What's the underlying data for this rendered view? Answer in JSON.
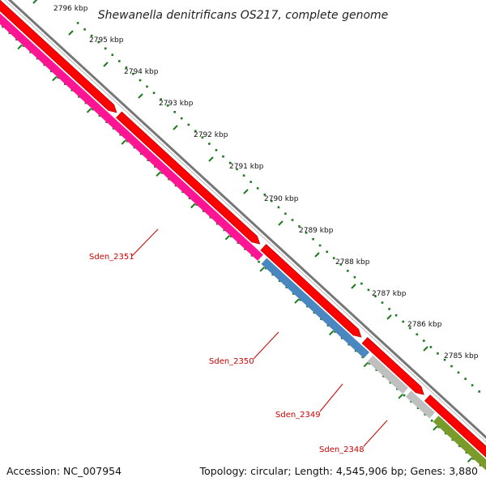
{
  "title": "Shewanella denitrificans OS217, complete genome",
  "ticks": [
    "2796 kbp",
    "2795 kbp",
    "2794 kbp",
    "2793 kbp",
    "2792 kbp",
    "2791 kbp",
    "2790 kbp",
    "2789 kbp",
    "2788 kbp",
    "2787 kbp",
    "2786 kbp",
    "2785 kbp"
  ],
  "genes": [
    "Sden_2351",
    "Sden_2350",
    "Sden_2349",
    "Sden_2348"
  ],
  "footer": {
    "accession": "Accession: NC_007954",
    "topology": "Topology: circular; Length: 4,545,906 bp; Genes: 3,880"
  },
  "colors": {
    "backbone": "#777777",
    "forward_cds": "#ff0000",
    "reverse_pink": "#ff1493",
    "reverse_blue": "#4a86c0",
    "reverse_gray": "#c0c0c0",
    "reverse_olive": "#7a9a2a",
    "ruler": "#1e7a1e",
    "label": "#cc0000"
  }
}
